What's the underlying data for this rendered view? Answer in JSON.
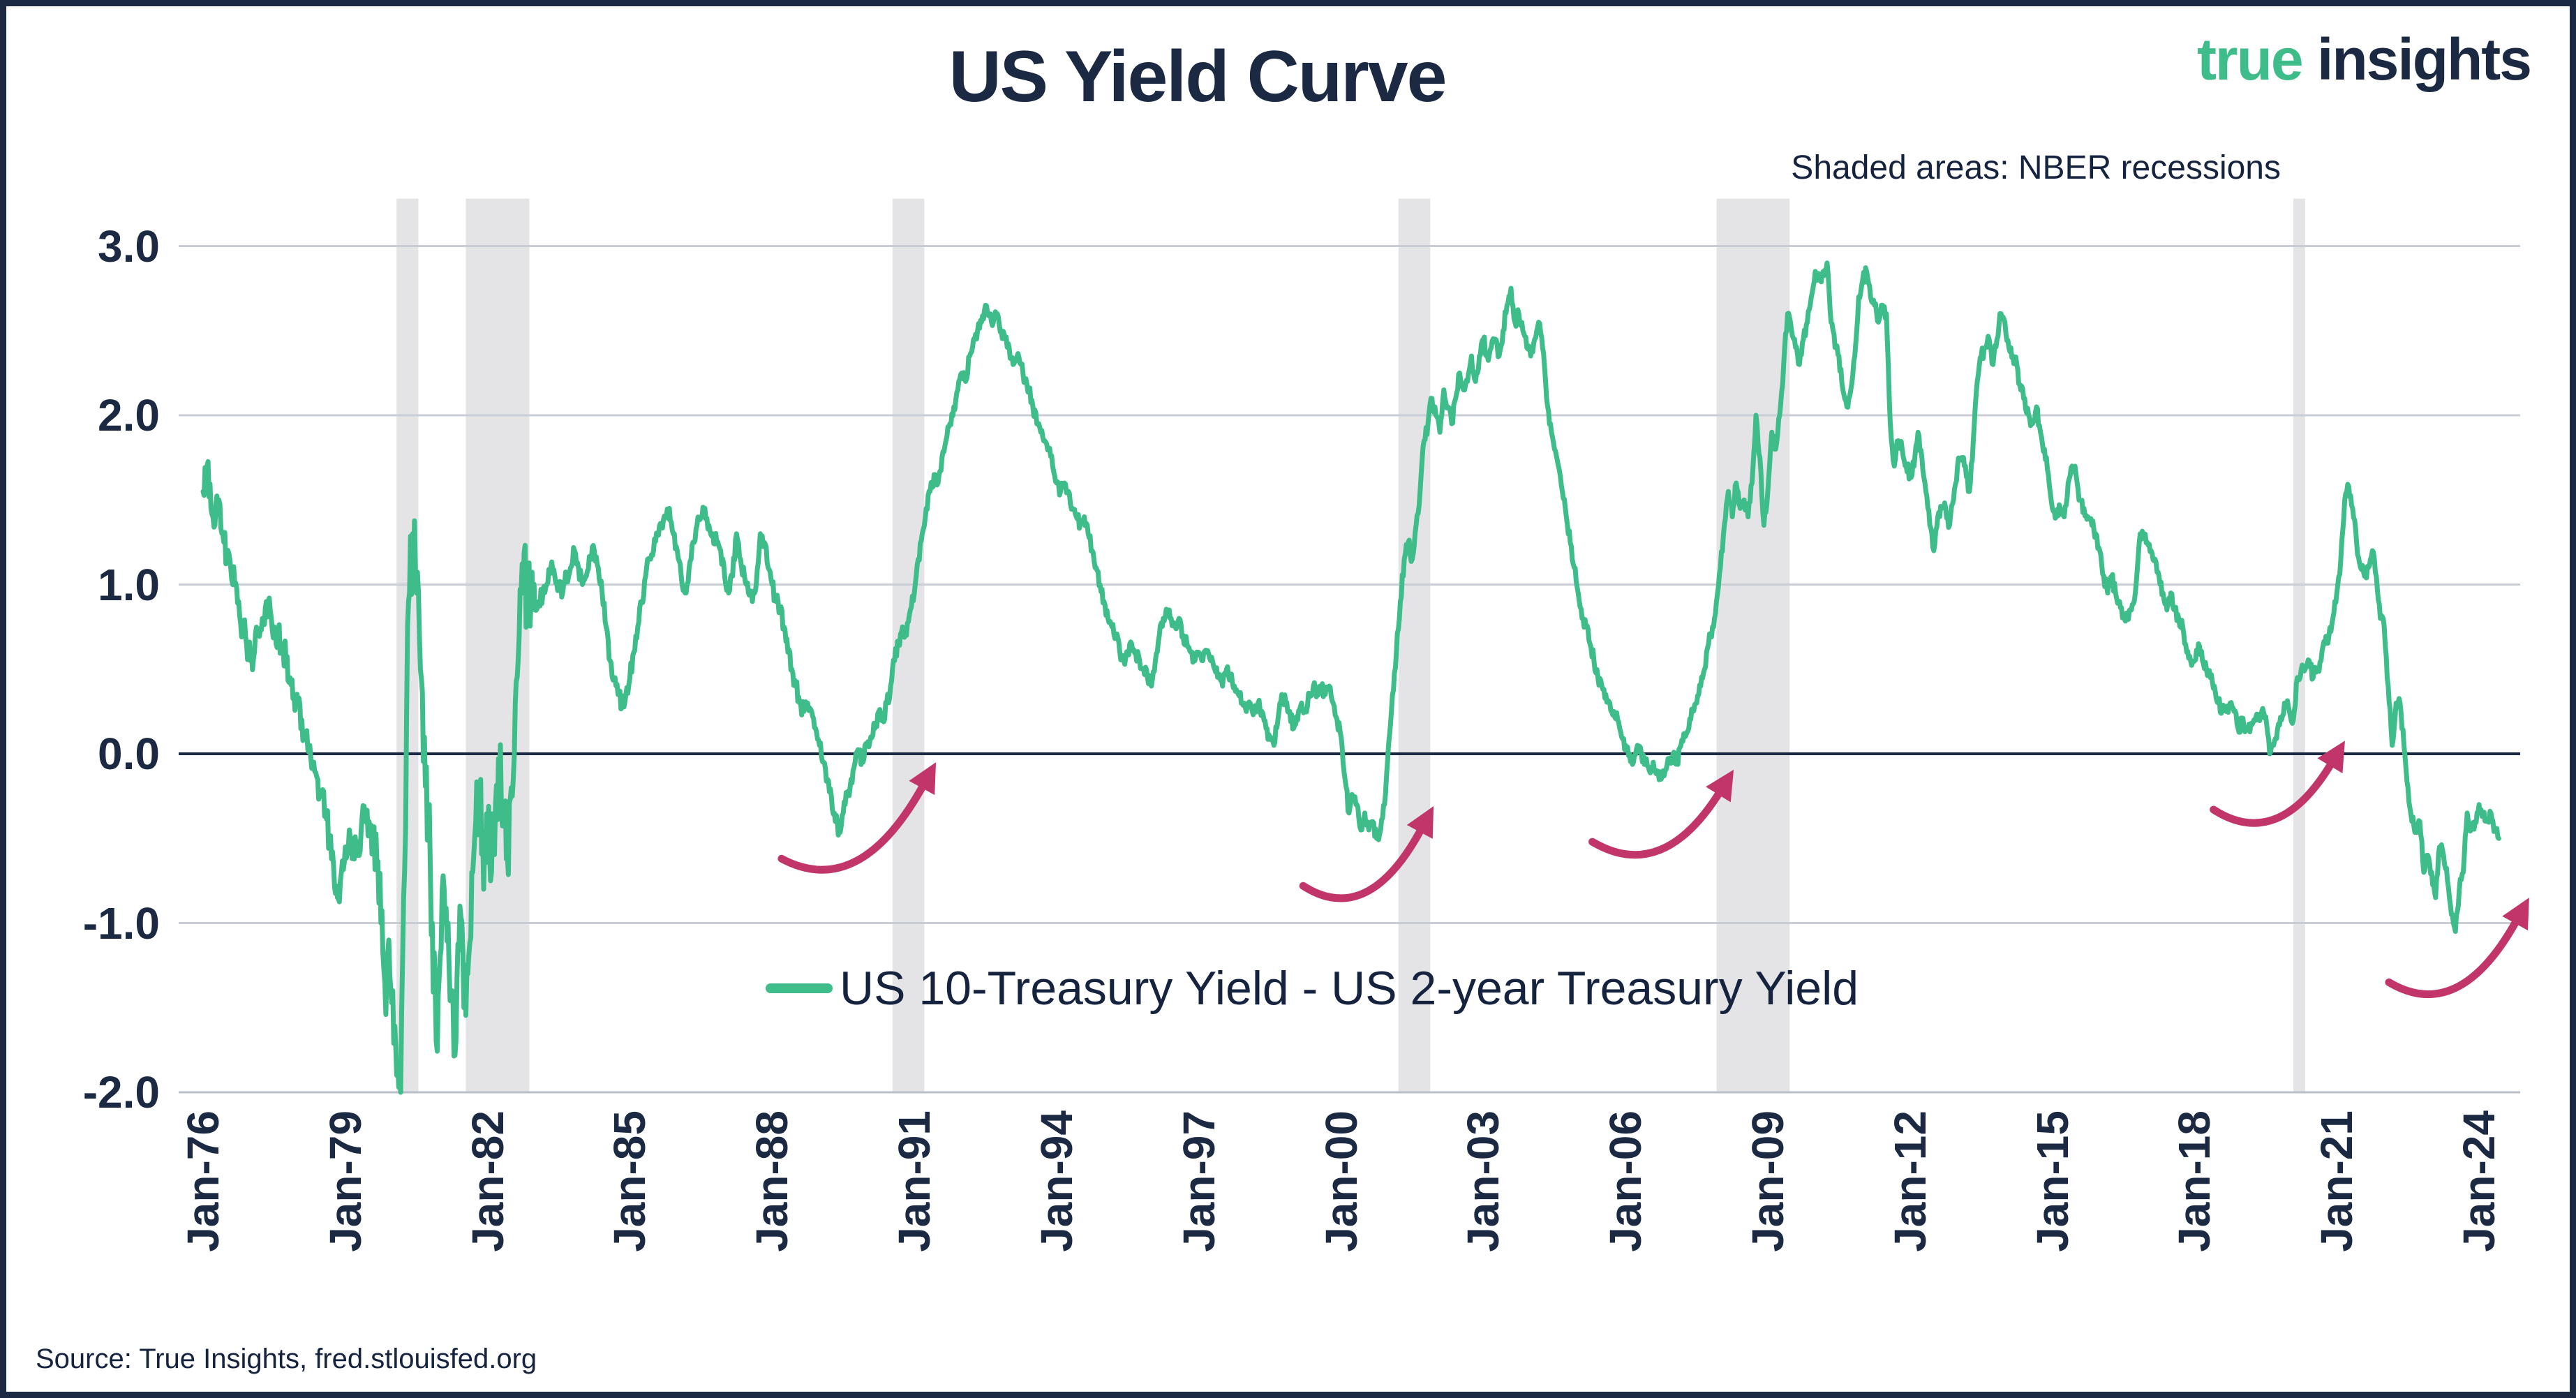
{
  "page": {
    "title": "US Yield Curve",
    "logo_true": "true",
    "logo_insights": "insights",
    "note": "Shaded areas: NBER recessions",
    "legend_label": "US 10-Treasury Yield - US 2-year Treasury Yield",
    "source": "Source: True Insights, fred.stlouisfed.org"
  },
  "colors": {
    "navy": "#1b2942",
    "green": "#3ebd8a",
    "crimson": "#c2356b",
    "recession_band": "#e4e4e6",
    "gridline": "#c9ced6",
    "zero_line": "#1b2942",
    "baseline": "#b9bfc9"
  },
  "chart_data": {
    "type": "line",
    "title": "US Yield Curve",
    "series_name": "US 10-Treasury Yield - US 2-year Treasury Yield",
    "note": "Shaded areas: NBER recessions",
    "x_start_year": 1976,
    "points_per_year": 12,
    "xlim": [
      1976,
      2024.5
    ],
    "ylim": [
      -2.0,
      3.28
    ],
    "grid": "horizontal",
    "legend_position": "center-inside",
    "y_ticks": [
      {
        "value": 3.0,
        "label": "3.0"
      },
      {
        "value": 2.0,
        "label": "2.0"
      },
      {
        "value": 1.0,
        "label": "1.0"
      },
      {
        "value": 0.0,
        "label": "0.0"
      },
      {
        "value": -1.0,
        "label": "-1.0"
      },
      {
        "value": -2.0,
        "label": "-2.0"
      }
    ],
    "x_ticks": [
      {
        "year": 1976,
        "label": "Jan-76"
      },
      {
        "year": 1979,
        "label": "Jan-79"
      },
      {
        "year": 1982,
        "label": "Jan-82"
      },
      {
        "year": 1985,
        "label": "Jan-85"
      },
      {
        "year": 1988,
        "label": "Jan-88"
      },
      {
        "year": 1991,
        "label": "Jan-91"
      },
      {
        "year": 1994,
        "label": "Jan-94"
      },
      {
        "year": 1997,
        "label": "Jan-97"
      },
      {
        "year": 2000,
        "label": "Jan-00"
      },
      {
        "year": 2003,
        "label": "Jan-03"
      },
      {
        "year": 2006,
        "label": "Jan-06"
      },
      {
        "year": 2009,
        "label": "Jan-09"
      },
      {
        "year": 2012,
        "label": "Jan-12"
      },
      {
        "year": 2015,
        "label": "Jan-15"
      },
      {
        "year": 2018,
        "label": "Jan-18"
      },
      {
        "year": 2021,
        "label": "Jan-21"
      },
      {
        "year": 2024,
        "label": "Jan-24"
      }
    ],
    "recessions": [
      {
        "start": 1980.08,
        "end": 1980.54
      },
      {
        "start": 1981.54,
        "end": 1982.88
      },
      {
        "start": 1990.54,
        "end": 1991.21
      },
      {
        "start": 2001.21,
        "end": 2001.88
      },
      {
        "start": 2007.92,
        "end": 2009.46
      },
      {
        "start": 2020.08,
        "end": 2020.33
      }
    ],
    "arrows": [
      {
        "x1": 1988.2,
        "y1": -0.62,
        "x2": 1991.2,
        "y2": -0.18
      },
      {
        "x1": 1999.2,
        "y1": -0.78,
        "x2": 2001.7,
        "y2": -0.44
      },
      {
        "x1": 2005.3,
        "y1": -0.52,
        "x2": 2008.0,
        "y2": -0.22
      },
      {
        "x1": 2018.4,
        "y1": -0.33,
        "x2": 2020.9,
        "y2": -0.05
      },
      {
        "x1": 2022.1,
        "y1": -1.35,
        "x2": 2024.8,
        "y2": -0.98
      }
    ],
    "values": [
      1.55,
      1.7,
      1.45,
      1.35,
      1.5,
      1.3,
      1.15,
      1.1,
      1.0,
      0.9,
      0.75,
      0.65,
      0.55,
      0.6,
      0.7,
      0.8,
      0.9,
      0.85,
      0.75,
      0.7,
      0.65,
      0.55,
      0.45,
      0.35,
      0.3,
      0.2,
      0.1,
      0.05,
      -0.05,
      -0.15,
      -0.25,
      -0.35,
      -0.5,
      -0.65,
      -0.85,
      -0.7,
      -0.55,
      -0.45,
      -0.55,
      -0.6,
      -0.45,
      -0.35,
      -0.4,
      -0.55,
      -0.65,
      -1.0,
      -1.35,
      -1.1,
      -1.4,
      -1.9,
      -2.0,
      -0.7,
      0.9,
      1.3,
      0.95,
      0.5,
      0.1,
      -0.4,
      -1.0,
      -1.7,
      -1.2,
      -0.8,
      -1.0,
      -1.4,
      -1.7,
      -0.9,
      -1.5,
      -1.3,
      -0.7,
      -0.4,
      -0.2,
      -0.8,
      -0.5,
      -0.7,
      -0.3,
      -0.15,
      -0.3,
      -0.6,
      -0.2,
      0.3,
      0.7,
      0.95,
      1.0,
      0.9,
      0.85,
      0.9,
      0.95,
      1.0,
      1.1,
      1.05,
      1.0,
      0.95,
      1.05,
      1.1,
      1.2,
      1.1,
      1.0,
      1.05,
      1.15,
      1.2,
      1.1,
      0.95,
      0.75,
      0.55,
      0.45,
      0.35,
      0.3,
      0.35,
      0.45,
      0.6,
      0.75,
      0.9,
      1.05,
      1.15,
      1.2,
      1.3,
      1.35,
      1.4,
      1.45,
      1.3,
      1.2,
      1.05,
      0.95,
      1.1,
      1.25,
      1.35,
      1.4,
      1.45,
      1.35,
      1.3,
      1.25,
      1.2,
      1.05,
      0.95,
      1.05,
      1.3,
      1.15,
      1.05,
      0.95,
      0.9,
      1.0,
      1.3,
      1.25,
      1.1,
      1.0,
      0.9,
      0.85,
      0.75,
      0.6,
      0.5,
      0.4,
      0.3,
      0.25,
      0.3,
      0.25,
      0.15,
      0.05,
      -0.05,
      -0.15,
      -0.25,
      -0.4,
      -0.45,
      -0.35,
      -0.25,
      -0.15,
      -0.05,
      0.0,
      -0.05,
      0.05,
      0.1,
      0.15,
      0.25,
      0.2,
      0.3,
      0.4,
      0.55,
      0.65,
      0.75,
      0.7,
      0.85,
      0.95,
      1.15,
      1.3,
      1.45,
      1.55,
      1.65,
      1.6,
      1.75,
      1.85,
      1.95,
      2.05,
      2.15,
      2.25,
      2.2,
      2.35,
      2.45,
      2.5,
      2.55,
      2.65,
      2.6,
      2.55,
      2.6,
      2.5,
      2.45,
      2.4,
      2.3,
      2.35,
      2.3,
      2.2,
      2.15,
      2.05,
      1.95,
      1.9,
      1.85,
      1.8,
      1.7,
      1.6,
      1.55,
      1.6,
      1.55,
      1.45,
      1.4,
      1.35,
      1.4,
      1.3,
      1.2,
      1.1,
      1.0,
      0.9,
      0.8,
      0.75,
      0.7,
      0.6,
      0.55,
      0.6,
      0.65,
      0.6,
      0.55,
      0.5,
      0.45,
      0.4,
      0.55,
      0.7,
      0.8,
      0.85,
      0.8,
      0.75,
      0.8,
      0.7,
      0.65,
      0.6,
      0.55,
      0.6,
      0.55,
      0.6,
      0.55,
      0.5,
      0.45,
      0.4,
      0.5,
      0.45,
      0.4,
      0.35,
      0.3,
      0.25,
      0.3,
      0.25,
      0.3,
      0.25,
      0.15,
      0.1,
      0.05,
      0.2,
      0.35,
      0.3,
      0.25,
      0.15,
      0.2,
      0.3,
      0.25,
      0.35,
      0.4,
      0.35,
      0.4,
      0.35,
      0.4,
      0.3,
      0.2,
      0.1,
      -0.15,
      -0.35,
      -0.25,
      -0.3,
      -0.45,
      -0.35,
      -0.45,
      -0.4,
      -0.5,
      -0.45,
      -0.3,
      0.05,
      0.35,
      0.6,
      0.9,
      1.15,
      1.25,
      1.15,
      1.35,
      1.55,
      1.85,
      1.95,
      2.1,
      2.0,
      1.9,
      2.15,
      2.05,
      1.95,
      2.1,
      2.25,
      2.15,
      2.2,
      2.35,
      2.2,
      2.35,
      2.45,
      2.35,
      2.4,
      2.45,
      2.35,
      2.5,
      2.65,
      2.75,
      2.55,
      2.6,
      2.5,
      2.4,
      2.35,
      2.45,
      2.55,
      2.4,
      2.1,
      1.95,
      1.8,
      1.7,
      1.55,
      1.4,
      1.25,
      1.1,
      0.95,
      0.8,
      0.75,
      0.65,
      0.55,
      0.45,
      0.4,
      0.35,
      0.3,
      0.25,
      0.2,
      0.1,
      0.05,
      0.0,
      -0.05,
      0.05,
      0.0,
      -0.05,
      -0.1,
      -0.05,
      -0.1,
      -0.15,
      -0.1,
      -0.05,
      0.0,
      -0.05,
      0.05,
      0.1,
      0.15,
      0.25,
      0.3,
      0.4,
      0.5,
      0.65,
      0.75,
      0.9,
      1.1,
      1.35,
      1.55,
      1.4,
      1.6,
      1.45,
      1.5,
      1.4,
      1.6,
      2.0,
      1.75,
      1.35,
      1.55,
      1.9,
      1.8,
      2.0,
      2.3,
      2.6,
      2.5,
      2.4,
      2.3,
      2.45,
      2.55,
      2.7,
      2.85,
      2.8,
      2.85,
      2.9,
      2.55,
      2.4,
      2.35,
      2.15,
      2.05,
      2.15,
      2.35,
      2.7,
      2.8,
      2.85,
      2.7,
      2.65,
      2.55,
      2.65,
      2.6,
      1.95,
      1.7,
      1.85,
      1.8,
      1.7,
      1.65,
      1.7,
      1.9,
      1.75,
      1.55,
      1.35,
      1.2,
      1.4,
      1.45,
      1.45,
      1.35,
      1.5,
      1.7,
      1.75,
      1.7,
      1.55,
      1.85,
      2.2,
      2.35,
      2.4,
      2.45,
      2.3,
      2.45,
      2.6,
      2.55,
      2.4,
      2.35,
      2.3,
      2.15,
      2.1,
      2.0,
      1.95,
      2.05,
      1.9,
      1.8,
      1.65,
      1.45,
      1.4,
      1.45,
      1.4,
      1.6,
      1.7,
      1.65,
      1.5,
      1.45,
      1.4,
      1.35,
      1.3,
      1.2,
      1.05,
      0.95,
      1.05,
      0.95,
      0.9,
      0.8,
      0.8,
      0.85,
      0.95,
      1.25,
      1.3,
      1.25,
      1.2,
      1.15,
      1.05,
      0.95,
      0.85,
      0.95,
      0.85,
      0.8,
      0.75,
      0.6,
      0.55,
      0.55,
      0.65,
      0.55,
      0.5,
      0.45,
      0.4,
      0.3,
      0.25,
      0.25,
      0.3,
      0.25,
      0.15,
      0.18,
      0.15,
      0.13,
      0.2,
      0.2,
      0.25,
      0.22,
      0.0,
      0.05,
      0.15,
      0.2,
      0.3,
      0.25,
      0.2,
      0.45,
      0.5,
      0.5,
      0.55,
      0.45,
      0.5,
      0.55,
      0.65,
      0.7,
      0.8,
      0.95,
      1.15,
      1.5,
      1.58,
      1.45,
      1.25,
      1.1,
      1.05,
      1.1,
      1.2,
      1.05,
      0.8,
      0.75,
      0.4,
      0.05,
      0.3,
      0.3,
      0.05,
      -0.2,
      -0.4,
      -0.45,
      -0.4,
      -0.7,
      -0.6,
      -0.7,
      -0.85,
      -0.55,
      -0.6,
      -0.75,
      -0.95,
      -1.05,
      -0.8,
      -0.7,
      -0.35,
      -0.45,
      -0.4,
      -0.3,
      -0.35,
      -0.4,
      -0.35,
      -0.45,
      -0.5
    ]
  }
}
